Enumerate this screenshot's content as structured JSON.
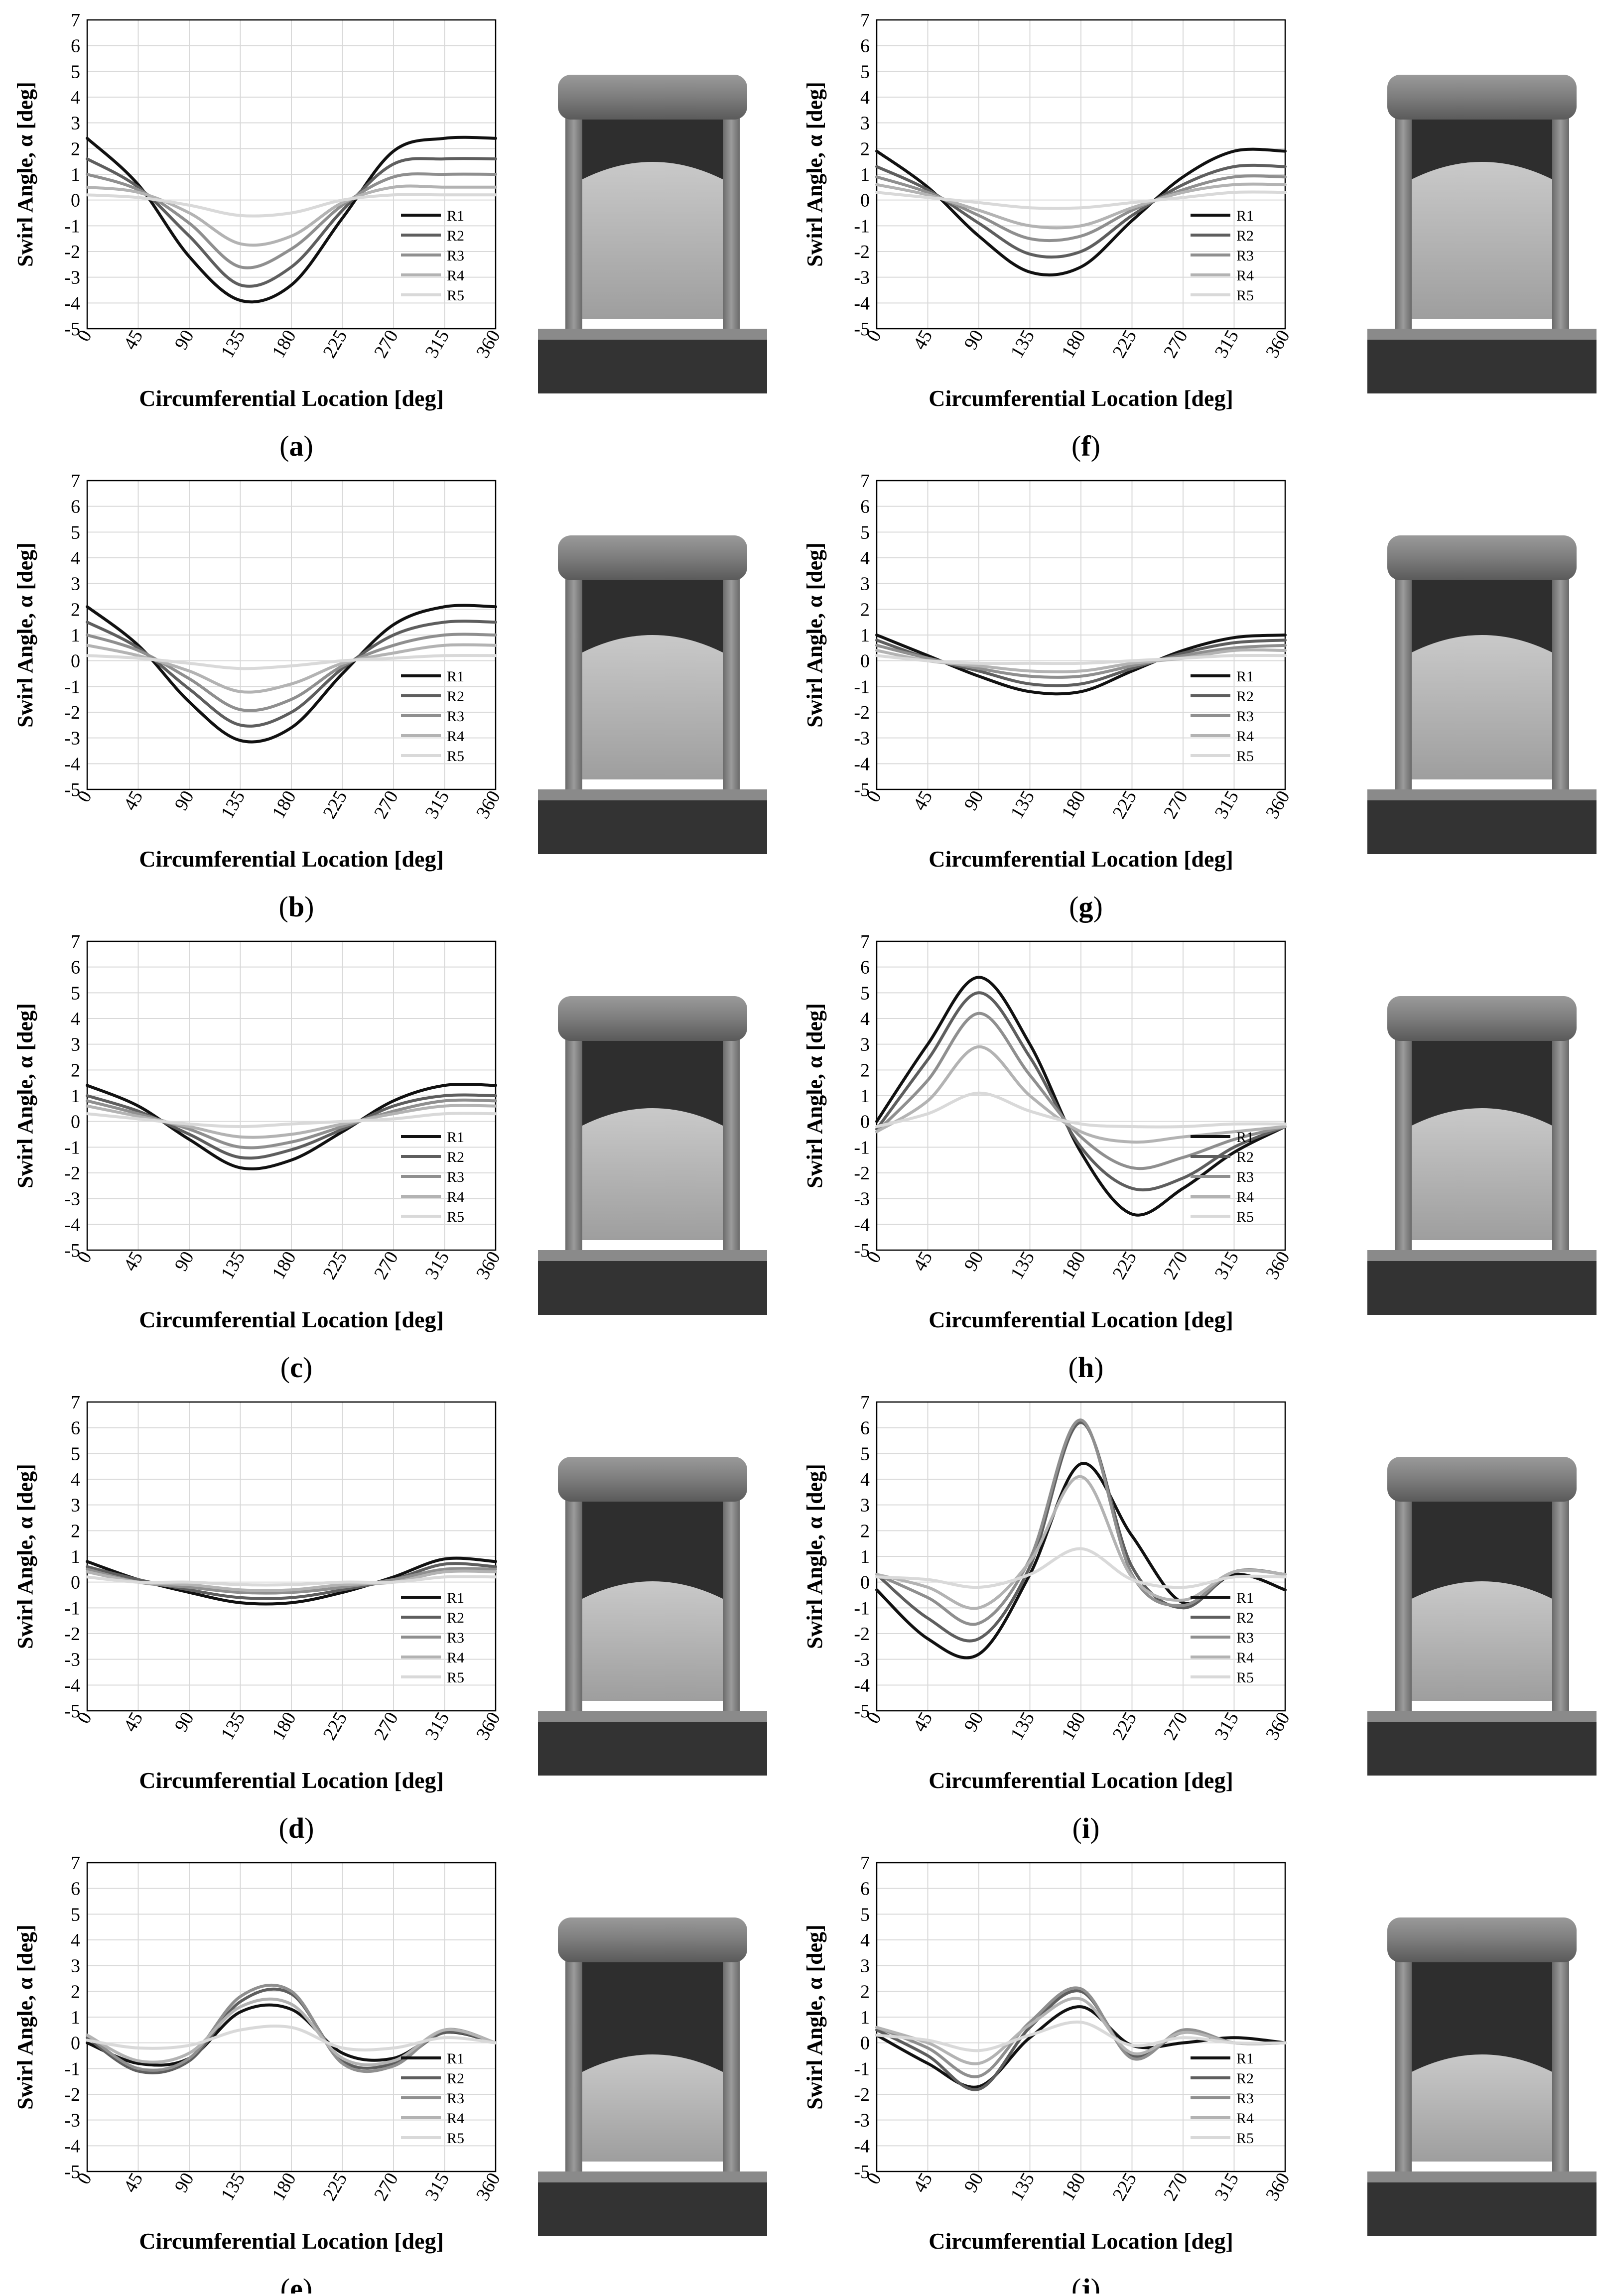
{
  "figure": {
    "y_axis_label": "Swirl  Angle,  α  [deg]",
    "x_axis_label": "Circumferential Location [deg]",
    "y_ticks": [
      "7",
      "6",
      "5",
      "4",
      "3",
      "2",
      "1",
      "0",
      "-1",
      "-2",
      "-3",
      "-4",
      "-5"
    ],
    "x_ticks": [
      "0",
      "45",
      "90",
      "135",
      "180",
      "225",
      "270",
      "315",
      "360"
    ],
    "series_colors": {
      "R1": "#111111",
      "R2": "#5e5e5e",
      "R3": "#8f8f8f",
      "R4": "#b3b3b3",
      "R5": "#d9d9d9"
    },
    "background_color": "#ffffff",
    "grid_color": "#d9d9d9"
  },
  "chart_data": [
    {
      "panel": "(a)",
      "type": "line",
      "ylim": [
        -5,
        7
      ],
      "xlim": [
        0,
        360
      ],
      "grid": true,
      "legend": "lower right",
      "x": [
        0,
        45,
        90,
        135,
        180,
        225,
        270,
        315,
        360
      ],
      "series": [
        {
          "name": "R1",
          "values": [
            2.4,
            0.6,
            -2.2,
            -3.9,
            -3.3,
            -0.7,
            1.9,
            2.4,
            2.4
          ]
        },
        {
          "name": "R2",
          "values": [
            1.6,
            0.5,
            -1.4,
            -3.3,
            -2.6,
            -0.4,
            1.4,
            1.6,
            1.6
          ]
        },
        {
          "name": "R3",
          "values": [
            1.0,
            0.4,
            -0.9,
            -2.6,
            -1.9,
            -0.2,
            0.9,
            1.0,
            1.0
          ]
        },
        {
          "name": "R4",
          "values": [
            0.5,
            0.3,
            -0.5,
            -1.7,
            -1.4,
            -0.1,
            0.5,
            0.5,
            0.5
          ]
        },
        {
          "name": "R5",
          "values": [
            0.2,
            0.1,
            -0.2,
            -0.6,
            -0.5,
            0.0,
            0.2,
            0.2,
            0.2
          ]
        }
      ]
    },
    {
      "panel": "(b)",
      "type": "line",
      "ylim": [
        -5,
        7
      ],
      "xlim": [
        0,
        360
      ],
      "grid": true,
      "legend": "lower right",
      "x": [
        0,
        45,
        90,
        135,
        180,
        225,
        270,
        315,
        360
      ],
      "series": [
        {
          "name": "R1",
          "values": [
            2.1,
            0.6,
            -1.6,
            -3.1,
            -2.6,
            -0.5,
            1.4,
            2.1,
            2.1
          ]
        },
        {
          "name": "R2",
          "values": [
            1.5,
            0.5,
            -1.1,
            -2.5,
            -2.0,
            -0.3,
            1.0,
            1.5,
            1.5
          ]
        },
        {
          "name": "R3",
          "values": [
            1.0,
            0.4,
            -0.7,
            -1.9,
            -1.5,
            -0.2,
            0.6,
            1.0,
            1.0
          ]
        },
        {
          "name": "R4",
          "values": [
            0.6,
            0.2,
            -0.4,
            -1.2,
            -0.9,
            -0.1,
            0.3,
            0.6,
            0.6
          ]
        },
        {
          "name": "R5",
          "values": [
            0.2,
            0.1,
            -0.1,
            -0.3,
            -0.2,
            0.0,
            0.1,
            0.2,
            0.2
          ]
        }
      ]
    },
    {
      "panel": "(c)",
      "type": "line",
      "ylim": [
        -5,
        7
      ],
      "xlim": [
        0,
        360
      ],
      "grid": true,
      "legend": "lower right",
      "x": [
        0,
        45,
        90,
        135,
        180,
        225,
        270,
        315,
        360
      ],
      "series": [
        {
          "name": "R1",
          "values": [
            1.4,
            0.6,
            -0.7,
            -1.8,
            -1.5,
            -0.4,
            0.8,
            1.4,
            1.4
          ]
        },
        {
          "name": "R2",
          "values": [
            1.0,
            0.4,
            -0.5,
            -1.4,
            -1.1,
            -0.3,
            0.6,
            1.0,
            1.0
          ]
        },
        {
          "name": "R3",
          "values": [
            0.8,
            0.3,
            -0.3,
            -1.0,
            -0.8,
            -0.2,
            0.4,
            0.8,
            0.8
          ]
        },
        {
          "name": "R4",
          "values": [
            0.6,
            0.2,
            -0.2,
            -0.6,
            -0.5,
            -0.1,
            0.3,
            0.6,
            0.6
          ]
        },
        {
          "name": "R5",
          "values": [
            0.3,
            0.1,
            -0.1,
            -0.2,
            -0.1,
            0.0,
            0.1,
            0.3,
            0.3
          ]
        }
      ]
    },
    {
      "panel": "(d)",
      "type": "line",
      "ylim": [
        -5,
        7
      ],
      "xlim": [
        0,
        360
      ],
      "grid": true,
      "legend": "lower right",
      "x": [
        0,
        45,
        90,
        135,
        180,
        225,
        270,
        315,
        360
      ],
      "series": [
        {
          "name": "R1",
          "values": [
            0.8,
            0.1,
            -0.4,
            -0.8,
            -0.8,
            -0.4,
            0.2,
            0.9,
            0.8
          ]
        },
        {
          "name": "R2",
          "values": [
            0.6,
            0.1,
            -0.3,
            -0.6,
            -0.6,
            -0.3,
            0.1,
            0.7,
            0.6
          ]
        },
        {
          "name": "R3",
          "values": [
            0.5,
            0.0,
            -0.2,
            -0.4,
            -0.4,
            -0.2,
            0.1,
            0.5,
            0.5
          ]
        },
        {
          "name": "R4",
          "values": [
            0.4,
            0.0,
            -0.1,
            -0.3,
            -0.3,
            -0.1,
            0.0,
            0.4,
            0.4
          ]
        },
        {
          "name": "R5",
          "values": [
            0.2,
            0.0,
            0.0,
            -0.1,
            -0.1,
            0.0,
            0.0,
            0.2,
            0.2
          ]
        }
      ]
    },
    {
      "panel": "(e)",
      "type": "line",
      "ylim": [
        -5,
        7
      ],
      "xlim": [
        0,
        360
      ],
      "grid": true,
      "legend": "lower right",
      "x": [
        0,
        45,
        90,
        135,
        180,
        225,
        270,
        315,
        360
      ],
      "series": [
        {
          "name": "R1",
          "values": [
            0.0,
            -0.8,
            -0.6,
            1.2,
            1.3,
            -0.4,
            -0.6,
            0.4,
            0.0
          ]
        },
        {
          "name": "R2",
          "values": [
            0.2,
            -1.1,
            -0.7,
            1.6,
            1.9,
            -0.7,
            -0.8,
            0.4,
            0.0
          ]
        },
        {
          "name": "R3",
          "values": [
            0.3,
            -1.0,
            -0.6,
            1.8,
            2.0,
            -0.8,
            -0.9,
            0.5,
            0.0
          ]
        },
        {
          "name": "R4",
          "values": [
            0.3,
            -0.7,
            -0.4,
            1.4,
            1.5,
            -0.6,
            -0.7,
            0.5,
            0.0
          ]
        },
        {
          "name": "R5",
          "values": [
            0.1,
            -0.2,
            -0.1,
            0.5,
            0.6,
            -0.2,
            -0.2,
            0.2,
            0.0
          ]
        }
      ]
    },
    {
      "panel": "(f)",
      "type": "line",
      "ylim": [
        -5,
        7
      ],
      "xlim": [
        0,
        360
      ],
      "grid": true,
      "legend": "lower right",
      "x": [
        0,
        45,
        90,
        135,
        180,
        225,
        270,
        315,
        360
      ],
      "series": [
        {
          "name": "R1",
          "values": [
            1.9,
            0.5,
            -1.4,
            -2.8,
            -2.6,
            -0.8,
            0.9,
            1.9,
            1.9
          ]
        },
        {
          "name": "R2",
          "values": [
            1.3,
            0.4,
            -0.9,
            -2.1,
            -2.0,
            -0.6,
            0.6,
            1.3,
            1.3
          ]
        },
        {
          "name": "R3",
          "values": [
            0.9,
            0.3,
            -0.6,
            -1.5,
            -1.4,
            -0.4,
            0.4,
            0.9,
            0.9
          ]
        },
        {
          "name": "R4",
          "values": [
            0.6,
            0.2,
            -0.4,
            -1.0,
            -1.0,
            -0.3,
            0.3,
            0.6,
            0.6
          ]
        },
        {
          "name": "R5",
          "values": [
            0.3,
            0.1,
            -0.1,
            -0.3,
            -0.3,
            -0.1,
            0.1,
            0.3,
            0.3
          ]
        }
      ]
    },
    {
      "panel": "(g)",
      "type": "line",
      "ylim": [
        -5,
        7
      ],
      "xlim": [
        0,
        360
      ],
      "grid": true,
      "legend": "lower right",
      "x": [
        0,
        45,
        90,
        135,
        180,
        225,
        270,
        315,
        360
      ],
      "series": [
        {
          "name": "R1",
          "values": [
            1.0,
            0.2,
            -0.6,
            -1.2,
            -1.2,
            -0.4,
            0.4,
            0.9,
            1.0
          ]
        },
        {
          "name": "R2",
          "values": [
            0.8,
            0.1,
            -0.4,
            -0.9,
            -0.9,
            -0.3,
            0.3,
            0.7,
            0.8
          ]
        },
        {
          "name": "R3",
          "values": [
            0.6,
            0.1,
            -0.3,
            -0.6,
            -0.6,
            -0.2,
            0.2,
            0.5,
            0.6
          ]
        },
        {
          "name": "R4",
          "values": [
            0.4,
            0.0,
            -0.2,
            -0.4,
            -0.4,
            -0.1,
            0.1,
            0.4,
            0.4
          ]
        },
        {
          "name": "R5",
          "values": [
            0.2,
            0.0,
            -0.1,
            -0.1,
            -0.1,
            0.0,
            0.1,
            0.2,
            0.2
          ]
        }
      ]
    },
    {
      "panel": "(h)",
      "type": "line",
      "ylim": [
        -5,
        7
      ],
      "xlim": [
        0,
        360
      ],
      "grid": true,
      "legend": "lower right",
      "x": [
        0,
        45,
        90,
        135,
        180,
        225,
        270,
        315,
        360
      ],
      "series": [
        {
          "name": "R1",
          "values": [
            0.0,
            3.0,
            5.6,
            3.0,
            -1.2,
            -3.6,
            -2.6,
            -1.2,
            -0.2
          ]
        },
        {
          "name": "R2",
          "values": [
            -0.3,
            2.4,
            5.0,
            2.5,
            -1.0,
            -2.6,
            -2.2,
            -1.0,
            -0.2
          ]
        },
        {
          "name": "R3",
          "values": [
            -0.4,
            1.6,
            4.2,
            1.8,
            -0.6,
            -1.8,
            -1.4,
            -0.7,
            -0.2
          ]
        },
        {
          "name": "R4",
          "values": [
            -0.4,
            0.8,
            2.9,
            1.0,
            -0.4,
            -0.8,
            -0.6,
            -0.4,
            -0.2
          ]
        },
        {
          "name": "R5",
          "values": [
            -0.2,
            0.3,
            1.1,
            0.4,
            -0.1,
            -0.2,
            -0.2,
            -0.1,
            -0.1
          ]
        }
      ]
    },
    {
      "panel": "(i)",
      "type": "line",
      "ylim": [
        -5,
        7
      ],
      "xlim": [
        0,
        360
      ],
      "grid": true,
      "legend": "lower right",
      "x": [
        0,
        45,
        90,
        135,
        180,
        225,
        270,
        315,
        360
      ],
      "series": [
        {
          "name": "R1",
          "values": [
            -0.3,
            -2.2,
            -2.8,
            0.3,
            4.6,
            1.8,
            -0.8,
            0.3,
            -0.3
          ]
        },
        {
          "name": "R2",
          "values": [
            0.3,
            -1.4,
            -2.2,
            0.6,
            6.2,
            0.6,
            -1.0,
            0.4,
            0.3
          ]
        },
        {
          "name": "R3",
          "values": [
            0.3,
            -0.6,
            -1.6,
            0.9,
            6.3,
            0.3,
            -0.9,
            0.4,
            0.3
          ]
        },
        {
          "name": "R4",
          "values": [
            0.3,
            -0.2,
            -1.0,
            0.8,
            4.1,
            0.2,
            -0.7,
            0.4,
            0.3
          ]
        },
        {
          "name": "R5",
          "values": [
            0.2,
            0.1,
            -0.2,
            0.3,
            1.3,
            0.1,
            -0.2,
            0.2,
            0.2
          ]
        }
      ]
    },
    {
      "panel": "(j)",
      "type": "line",
      "ylim": [
        -5,
        7
      ],
      "xlim": [
        0,
        360
      ],
      "grid": true,
      "legend": "lower right",
      "x": [
        0,
        45,
        90,
        135,
        180,
        225,
        270,
        315,
        360
      ],
      "series": [
        {
          "name": "R1",
          "values": [
            0.3,
            -0.8,
            -1.7,
            0.2,
            1.4,
            -0.1,
            0.0,
            0.2,
            0.0
          ]
        },
        {
          "name": "R2",
          "values": [
            0.5,
            -0.5,
            -1.8,
            0.6,
            2.0,
            -0.5,
            0.4,
            0.0,
            0.0
          ]
        },
        {
          "name": "R3",
          "values": [
            0.6,
            -0.2,
            -1.3,
            0.8,
            2.1,
            -0.6,
            0.5,
            0.0,
            0.0
          ]
        },
        {
          "name": "R4",
          "values": [
            0.6,
            0.0,
            -0.8,
            0.7,
            1.7,
            -0.4,
            0.4,
            0.0,
            0.0
          ]
        },
        {
          "name": "R5",
          "values": [
            0.3,
            0.1,
            -0.3,
            0.3,
            0.8,
            -0.1,
            0.2,
            0.0,
            0.0
          ]
        }
      ]
    }
  ],
  "panel_labels": [
    "(a)",
    "(b)",
    "(c)",
    "(d)",
    "(e)",
    "(f)",
    "(g)",
    "(h)",
    "(i)",
    "(j)"
  ],
  "vane_image_icon": "cascade-vane-render-icon"
}
